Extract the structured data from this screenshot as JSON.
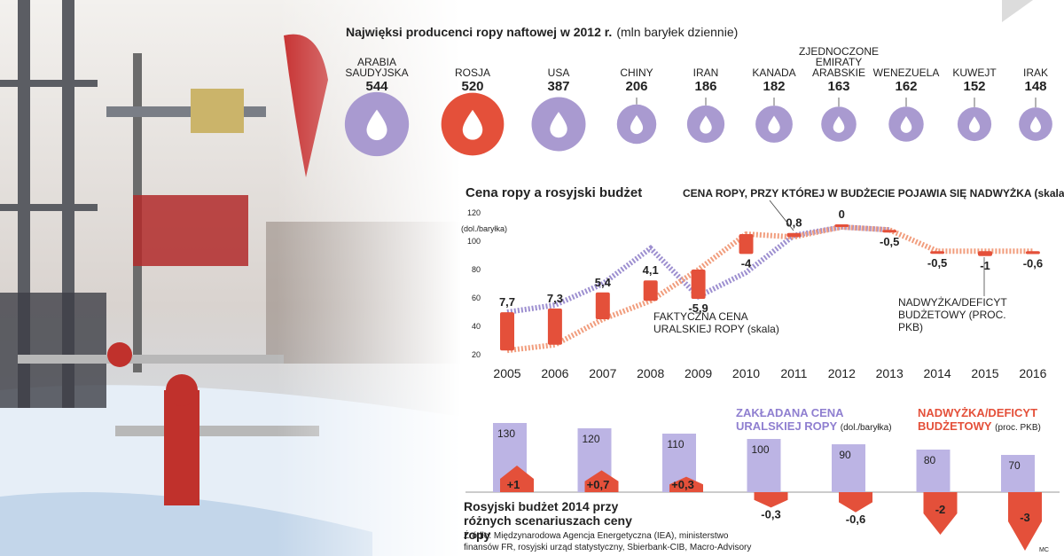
{
  "chart_data": [
    {
      "type": "bubble",
      "title": "Najwięksi producenci ropy naftowej w 2012 r.",
      "subtitle": "(mln baryłek dziennie)",
      "categories": [
        "ARABIA SAUDYJSKA",
        "ROSJA",
        "USA",
        "CHINY",
        "IRAN",
        "KANADA",
        "ZJEDNOCZONE EMIRATY ARABSKIE",
        "WENEZUELA",
        "KUWEJT",
        "IRAK"
      ],
      "values": [
        544,
        520,
        387,
        206,
        186,
        182,
        163,
        162,
        152,
        148
      ],
      "colors": [
        "#a99ad0",
        "#e4503a",
        "#a99ad0",
        "#a99ad0",
        "#a99ad0",
        "#a99ad0",
        "#a99ad0",
        "#a99ad0",
        "#a99ad0",
        "#a99ad0"
      ]
    },
    {
      "type": "line",
      "title": "Cena ropy a rosyjski budżet",
      "y_label": "(dol./baryłka)",
      "x": [
        2005,
        2006,
        2007,
        2008,
        2009,
        2010,
        2011,
        2012,
        2013,
        2014,
        2015,
        2016
      ],
      "ylim": [
        20,
        120
      ],
      "yticks": [
        20,
        40,
        60,
        80,
        100,
        120
      ],
      "series": [
        {
          "name": "FAKTYCZNA CENA URALSKIEJ ROPY (skala)",
          "color": "#9d8fd0",
          "values": [
            50,
            55,
            70,
            95,
            61,
            78,
            104,
            110,
            108,
            null,
            null,
            null
          ]
        },
        {
          "name": "CENA ROPY, PRZY KTÓREJ W BUDŻECIE POJAWIA SIĘ NADWYŻKA (skala)",
          "color": "#f19d7d",
          "values": [
            23,
            27,
            45,
            58,
            80,
            105,
            103,
            110,
            108,
            93,
            93,
            93
          ]
        },
        {
          "name": "NADWYŻKA/DEFICYT BUDŻETOWY (PROC. PKB)",
          "type": "bar",
          "color": "#e4503a",
          "values": [
            7.7,
            7.3,
            5.4,
            4.1,
            -5.9,
            -4,
            0.8,
            0,
            -0.5,
            -0.5,
            -1,
            -0.6
          ],
          "value_labels": [
            "7,7",
            "7,3",
            "5,4",
            "4,1",
            "-5,9",
            "-4",
            "0,8",
            "0",
            "-0,5",
            "-0,5",
            "-1",
            "-0,6"
          ]
        }
      ]
    },
    {
      "type": "bar",
      "title": "Rosyjski budżet 2014 przy różnych scenariuszach ceny ropy",
      "series": [
        {
          "name": "ZAKŁADANA CENA URALSKIEJ ROPY",
          "unit": "(dol./baryłka)",
          "color": "#bcb4e4",
          "values": [
            130,
            120,
            110,
            100,
            90,
            80,
            70
          ]
        },
        {
          "name": "NADWYŻKA/DEFICYT BUDŻETOWY",
          "unit": "(proc. PKB)",
          "color": "#e4503a",
          "values": [
            1,
            0.7,
            0.3,
            -0.3,
            -0.6,
            -2,
            -3
          ],
          "value_labels": [
            "+1",
            "+0,7",
            "+0,3",
            "-0,3",
            "-0,6",
            "-2",
            "-3"
          ]
        }
      ]
    }
  ],
  "source": "Źródło: Międzynarodowa Agencja Energetyczna (IEA), ministerstwo finansów FR, rosyjski urząd statystyczny, Sbierbank-CIB, Macro-Advisory",
  "credit": "MC"
}
